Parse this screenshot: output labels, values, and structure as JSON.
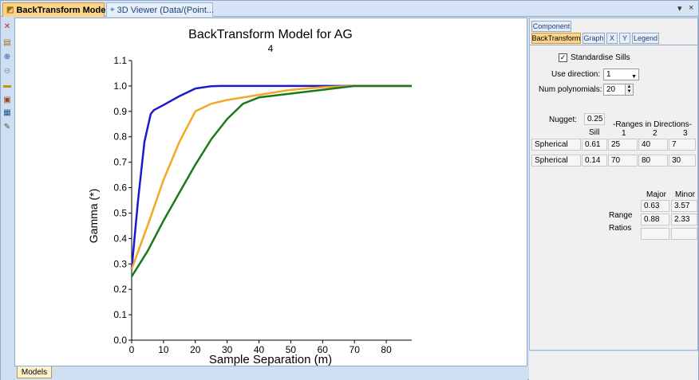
{
  "tabs": {
    "active": "BackTransform Model",
    "inactive": "3D Viewer (Data/(Point..."
  },
  "window_controls": {
    "menu": "▾",
    "pin": "▾",
    "close": "×"
  },
  "toolbar_icons": [
    "close-icon",
    "new-icon",
    "zoom-in-icon",
    "zoom-out-icon",
    "folder-icon",
    "layers-icon",
    "grid-icon",
    "chart-settings-icon"
  ],
  "bottom_tab": "Models",
  "chart_data": {
    "type": "line",
    "title": "BackTransform Model for AG",
    "subtitle": "4",
    "xlabel": "Sample Separation (m)",
    "ylabel": "Gamma (*)",
    "xlim": [
      0,
      88
    ],
    "ylim": [
      0,
      1.1
    ],
    "xticks": [
      0,
      10,
      20,
      30,
      40,
      50,
      60,
      70,
      80
    ],
    "yticks": [
      0.0,
      0.1,
      0.2,
      0.3,
      0.4,
      0.5,
      0.6,
      0.7,
      0.8,
      0.9,
      1.0,
      1.1
    ],
    "series": [
      {
        "color": "#1a1acc",
        "x": [
          0,
          2,
          4,
          6,
          7,
          10,
          15,
          20,
          25,
          28,
          88
        ],
        "y": [
          0.28,
          0.55,
          0.78,
          0.89,
          0.905,
          0.925,
          0.96,
          0.99,
          0.999,
          1.0,
          1.0
        ]
      },
      {
        "color": "#f5a623",
        "x": [
          0,
          5,
          10,
          15,
          20,
          25,
          30,
          40,
          50,
          60,
          70,
          88
        ],
        "y": [
          0.28,
          0.45,
          0.63,
          0.78,
          0.9,
          0.93,
          0.945,
          0.965,
          0.985,
          0.995,
          1.0,
          1.0
        ]
      },
      {
        "color": "#1a7a1a",
        "x": [
          0,
          5,
          10,
          15,
          20,
          25,
          30,
          35,
          40,
          50,
          60,
          70,
          88
        ],
        "y": [
          0.25,
          0.35,
          0.47,
          0.58,
          0.69,
          0.79,
          0.87,
          0.93,
          0.955,
          0.97,
          0.985,
          1.0,
          1.0
        ]
      }
    ]
  },
  "panel": {
    "tabs_row1": [
      "Component"
    ],
    "tabs_row2": [
      "BackTransform",
      "Graph",
      "X",
      "Y",
      "Legend"
    ],
    "standardise_label": "Standardise Sills",
    "standardise_checked": "✓",
    "use_direction_label": "Use direction:",
    "use_direction_value": "1",
    "num_polynomials_label": "Num polynomials:",
    "num_polynomials_value": "20",
    "nugget_label": "Nugget:",
    "nugget_value": "0.25",
    "sill_header": "Sill",
    "ranges_header": "-Ranges in Directions-",
    "dir_headers": [
      "1",
      "2",
      "3"
    ],
    "structures": [
      {
        "type": "Spherical",
        "sill": "0.61",
        "r1": "25",
        "r2": "40",
        "r3": "7"
      },
      {
        "type": "Spherical",
        "sill": "0.14",
        "r1": "70",
        "r2": "80",
        "r3": "30"
      }
    ],
    "ratio_headers": [
      "Major",
      "Minor"
    ],
    "ratios_label_1": "Range",
    "ratios_label_2": "Ratios",
    "ratios": [
      {
        "major": "0.63",
        "minor": "3.57"
      },
      {
        "major": "0.88",
        "minor": "2.33"
      },
      {
        "major": "",
        "minor": ""
      }
    ]
  }
}
